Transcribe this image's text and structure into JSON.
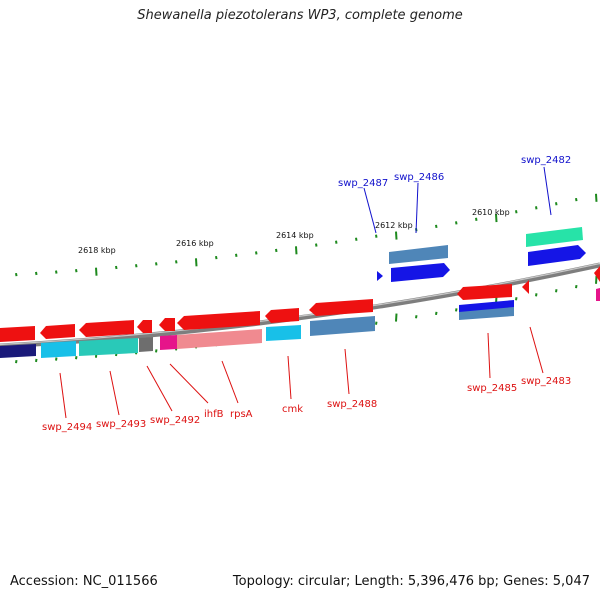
{
  "title": "Shewanella piezotolerans WP3, complete genome",
  "footer": {
    "accession": "Accession: NC_011566",
    "summary": "Topology: circular; Length: 5,396,476 bp; Genes: 5,047"
  },
  "scale_labels": [
    "2618 kbp",
    "2616 kbp",
    "2614 kbp",
    "2612 kbp",
    "2610 kbp"
  ],
  "top_gene_labels": [
    "swp_2487",
    "swp_2486",
    "swp_2482"
  ],
  "bottom_gene_labels": [
    "swp_2494",
    "swp_2493",
    "swp_2492",
    "ihfB",
    "rpsA",
    "cmk",
    "swp_2488",
    "swp_2485",
    "swp_2483"
  ],
  "colors": {
    "forward_gene": "#ee1111",
    "reverse_gene": "#ee1111",
    "blue_gene": "#1515e6",
    "steel_blue": "#4f86b8",
    "cyan": "#18c0e8",
    "teal": "#29c9b8",
    "aqua_green": "#27e3a8",
    "magenta": "#e6148a",
    "pink": "#f08a90",
    "navy": "#1a1a7a",
    "gray": "#6e6e6e",
    "backbone": "#888888",
    "tick": "#1e8a1e",
    "label_red": "#dd1111",
    "label_blue": "#1111cc"
  }
}
